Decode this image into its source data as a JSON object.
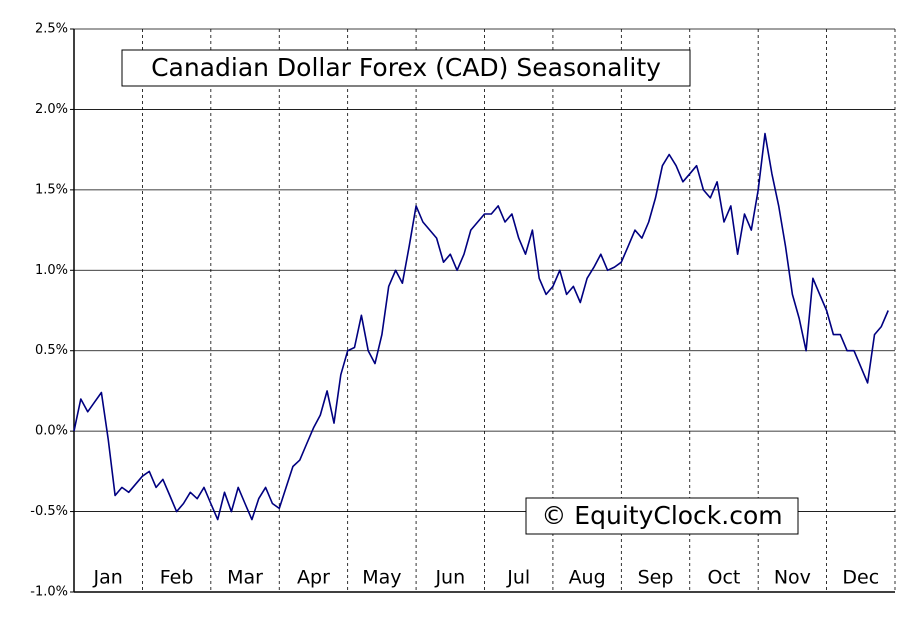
{
  "chart_data": {
    "type": "line",
    "title": "Canadian Dollar Forex (CAD) Seasonality",
    "watermark": "© EquityClock.com",
    "categories": [
      "Jan",
      "Feb",
      "Mar",
      "Apr",
      "May",
      "Jun",
      "Jul",
      "Aug",
      "Sep",
      "Oct",
      "Nov",
      "Dec"
    ],
    "series": [
      {
        "color": "#000080",
        "values": [
          [
            0.0,
            0.2,
            0.12,
            0.18,
            0.24,
            -0.05,
            -0.4,
            -0.35,
            -0.38,
            -0.33
          ],
          [
            -0.28,
            -0.25,
            -0.35,
            -0.3,
            -0.4,
            -0.5,
            -0.45,
            -0.38,
            -0.42,
            -0.35
          ],
          [
            -0.45,
            -0.55,
            -0.38,
            -0.5,
            -0.35,
            -0.45,
            -0.55,
            -0.42,
            -0.35,
            -0.45
          ],
          [
            -0.48,
            -0.35,
            -0.22,
            -0.18,
            -0.08,
            0.02,
            0.1,
            0.25,
            0.05,
            0.35
          ],
          [
            0.5,
            0.52,
            0.72,
            0.5,
            0.42,
            0.6,
            0.9,
            1.0,
            0.92,
            1.15
          ],
          [
            1.4,
            1.3,
            1.25,
            1.2,
            1.05,
            1.1,
            1.0,
            1.1,
            1.25,
            1.3
          ],
          [
            1.35,
            1.35,
            1.4,
            1.3,
            1.35,
            1.2,
            1.1,
            1.25,
            0.95,
            0.85
          ],
          [
            0.9,
            1.0,
            0.85,
            0.9,
            0.8,
            0.95,
            1.02,
            1.1,
            1.0,
            1.02
          ],
          [
            1.05,
            1.15,
            1.25,
            1.2,
            1.3,
            1.45,
            1.65,
            1.72,
            1.65,
            1.55
          ],
          [
            1.6,
            1.65,
            1.5,
            1.45,
            1.55,
            1.3,
            1.4,
            1.1,
            1.35,
            1.25
          ],
          [
            1.5,
            1.85,
            1.6,
            1.4,
            1.15,
            0.85,
            0.7,
            0.5,
            0.95,
            0.85
          ],
          [
            0.75,
            0.6,
            0.6,
            0.5,
            0.5,
            0.4,
            0.3,
            0.6,
            0.65,
            0.75
          ]
        ]
      }
    ],
    "ylim": [
      -1.0,
      2.5
    ],
    "yticks": [
      {
        "value": -1.0,
        "label": "-1.0%"
      },
      {
        "value": -0.5,
        "label": "-0.5%"
      },
      {
        "value": 0,
        "label": "0.0%"
      },
      {
        "value": 0.5,
        "label": "0.5%"
      },
      {
        "value": 1.0,
        "label": "1.0%"
      },
      {
        "value": 1.5,
        "label": "1.5%"
      },
      {
        "value": 2.0,
        "label": "2.0%"
      },
      {
        "value": 2.5,
        "label": "2.5%"
      }
    ],
    "grid": true
  }
}
